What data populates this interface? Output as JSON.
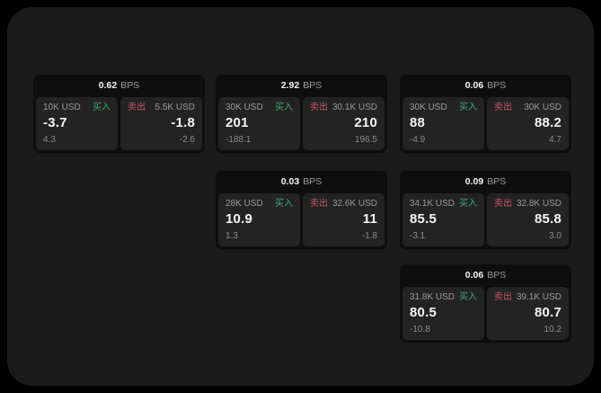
{
  "window": {
    "bg_outer": "#000000",
    "bg_page": "#1b1b1b",
    "colors": {
      "card_bg": "#0e0e0e",
      "panel_bg": "#232323",
      "text_primary": "#f5f5f5",
      "text_muted": "#9a9a9a",
      "text_sub": "#8c8c8c",
      "buy_green": "#3ca877",
      "sell_red": "#c9536b"
    }
  },
  "labels": {
    "bps_suffix": "BPS",
    "buy": "买入",
    "sell": "卖出"
  },
  "cards": [
    {
      "bps": "0.62",
      "row": 1,
      "col": 1,
      "buy": {
        "amount": "10K USD",
        "value": "-3.7",
        "sub": "4.3"
      },
      "sell": {
        "amount": "5.5K USD",
        "value": "-1.8",
        "sub": "-2.6"
      }
    },
    {
      "bps": "2.92",
      "row": 1,
      "col": 2,
      "buy": {
        "amount": "30K USD",
        "value": "201",
        "sub": "-188.1"
      },
      "sell": {
        "amount": "30.1K USD",
        "value": "210",
        "sub": "196.5"
      }
    },
    {
      "bps": "0.06",
      "row": 1,
      "col": 3,
      "buy": {
        "amount": "30K USD",
        "value": "88",
        "sub": "-4.9"
      },
      "sell": {
        "amount": "30K USD",
        "value": "88.2",
        "sub": "4.7"
      }
    },
    {
      "bps": "0.03",
      "row": 2,
      "col": 2,
      "buy": {
        "amount": "28K USD",
        "value": "10.9",
        "sub": "1.3"
      },
      "sell": {
        "amount": "32.6K USD",
        "value": "11",
        "sub": "-1.8"
      }
    },
    {
      "bps": "0.09",
      "row": 2,
      "col": 3,
      "buy": {
        "amount": "34.1K USD",
        "value": "85.5",
        "sub": "-3.1"
      },
      "sell": {
        "amount": "32.8K USD",
        "value": "85.8",
        "sub": "3.0"
      }
    },
    {
      "bps": "0.06",
      "row": 3,
      "col": 3,
      "buy": {
        "amount": "31.8K USD",
        "value": "80.5",
        "sub": "-10.8"
      },
      "sell": {
        "amount": "39.1K USD",
        "value": "80.7",
        "sub": "10.2"
      }
    }
  ]
}
